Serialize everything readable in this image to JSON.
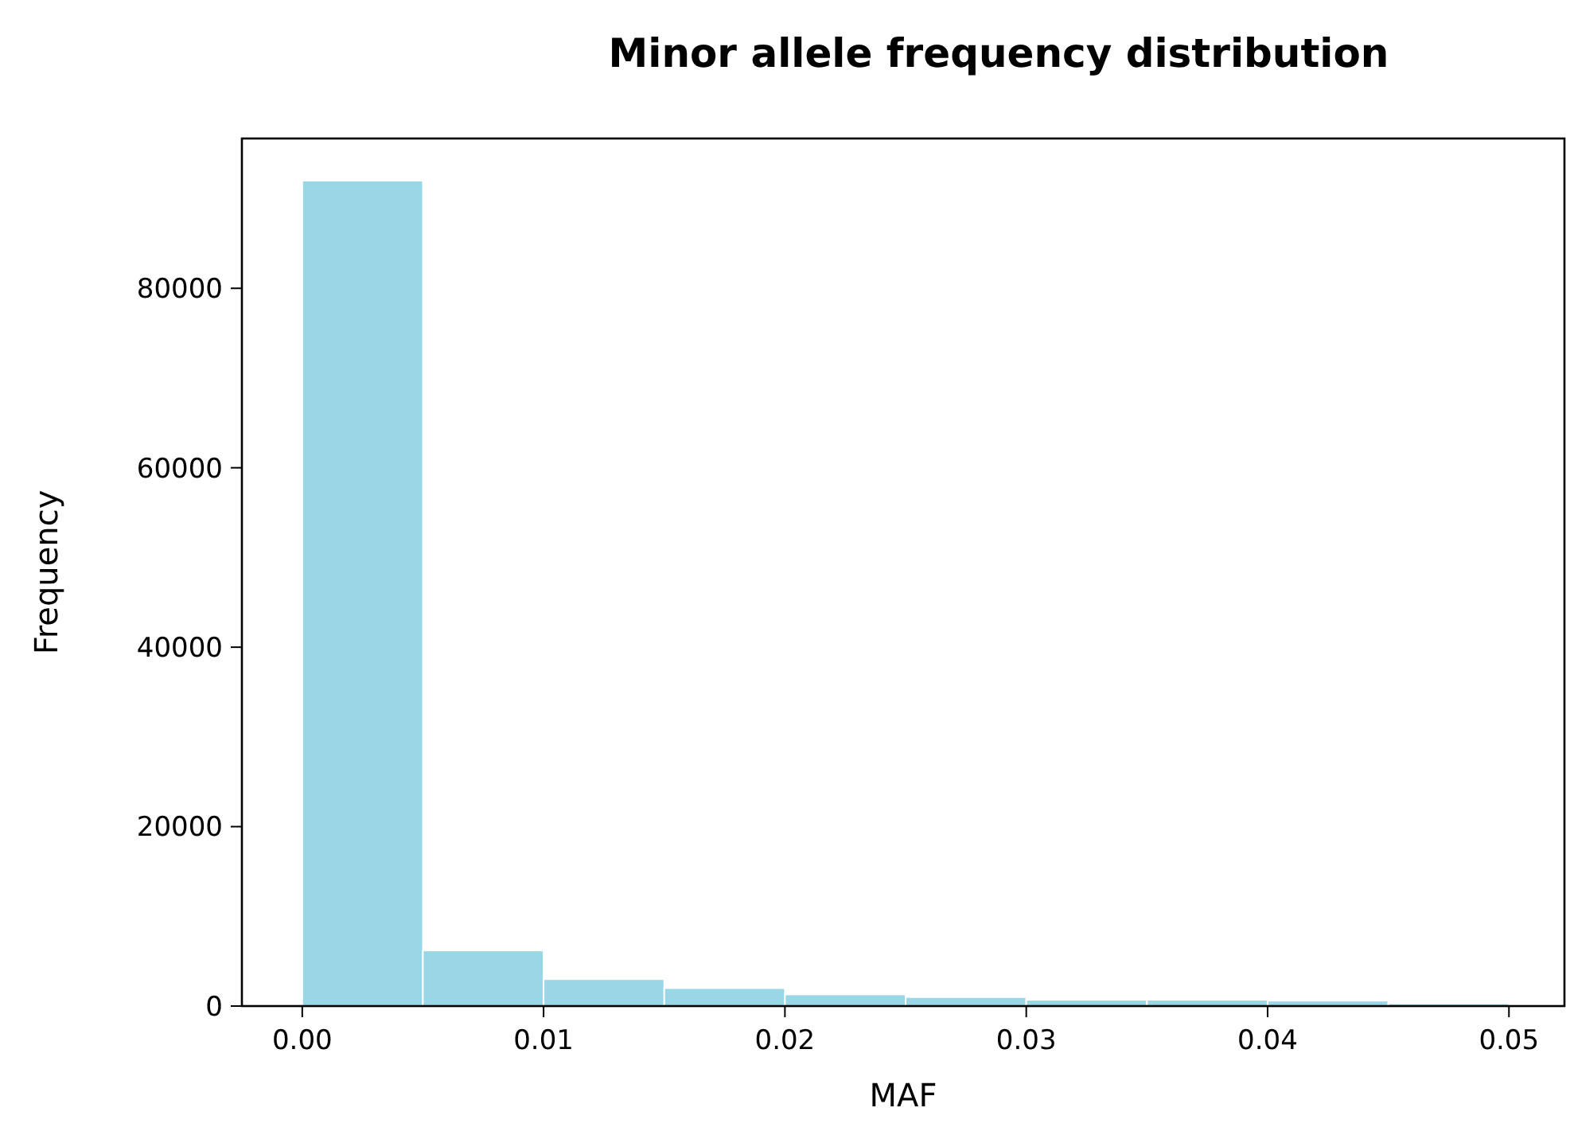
{
  "chart_data": {
    "type": "histogram",
    "title": "Minor allele frequency distribution",
    "xlabel": "MAF",
    "ylabel": "Frequency",
    "bins": [
      0,
      0.005,
      0.01,
      0.015,
      0.02,
      0.025,
      0.03,
      0.035,
      0.04,
      0.045,
      0.05
    ],
    "values": [
      92000,
      6200,
      3000,
      2000,
      1300,
      1000,
      700,
      700,
      600,
      300
    ],
    "color": "#9ad7e6",
    "xlim": [
      -0.0025,
      0.0523
    ],
    "xticks": [
      {
        "value": 0,
        "label": "0.00"
      },
      {
        "value": 0.01,
        "label": "0.01"
      },
      {
        "value": 0.02,
        "label": "0.02"
      },
      {
        "value": 0.03,
        "label": "0.03"
      },
      {
        "value": 0.04,
        "label": "0.04"
      },
      {
        "value": 0.05,
        "label": "0.05"
      }
    ],
    "ylim": [
      0,
      96700
    ],
    "yticks": [
      0,
      20000,
      40000,
      60000,
      80000
    ],
    "grid": false
  }
}
